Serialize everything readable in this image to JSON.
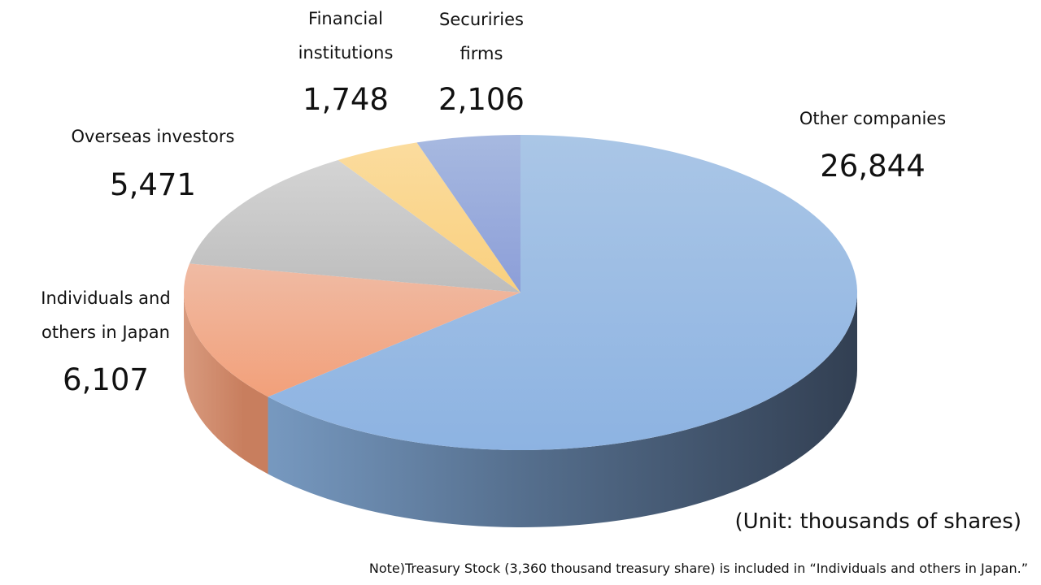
{
  "chart_data": {
    "type": "pie",
    "title": "",
    "unit_label": "(Unit: thousands of shares)",
    "note": "Note)Treasury Stock (3,360 thousand treasury share) is included in “Individuals and others in Japan.”",
    "legend": "none",
    "slices": [
      {
        "name": "Other companies",
        "label_lines": [
          "Other companies"
        ],
        "value": 26844,
        "value_label": "26,844",
        "color": "#8FB4E3"
      },
      {
        "name": "Individuals and others in Japan",
        "label_lines": [
          "Individuals and",
          "others in Japan"
        ],
        "value": 6107,
        "value_label": "6,107",
        "color": "#F3A582"
      },
      {
        "name": "Overseas investors",
        "label_lines": [
          "Overseas investors"
        ],
        "value": 5471,
        "value_label": "5,471",
        "color": "#C4C4C4"
      },
      {
        "name": "Financial institutions",
        "label_lines": [
          "Financial",
          "institutions"
        ],
        "value": 1748,
        "value_label": "1,748",
        "color": "#FBD68E"
      },
      {
        "name": "Securiries firms",
        "label_lines": [
          "Securiries",
          "firms"
        ],
        "value": 2106,
        "value_label": "2,106",
        "color": "#94A5D9"
      }
    ]
  }
}
